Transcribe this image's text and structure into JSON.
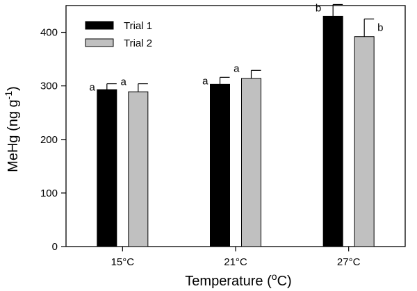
{
  "chart_data": {
    "type": "bar",
    "title": "",
    "xlabel": "Temperature",
    "xlabel_unit_prefix": "(",
    "xlabel_unit_sup": "o",
    "xlabel_unit_suffix": "C)",
    "ylabel": "MeHg (ng g",
    "ylabel_sup": "-1",
    "ylabel_suffix": ")",
    "ylim": [
      0,
      450
    ],
    "yticks": [
      0,
      100,
      200,
      300,
      400
    ],
    "categories": [
      "15°C",
      "21°C",
      "27°C"
    ],
    "legend_position": "top-left",
    "grid": false,
    "series": [
      {
        "name": "Trial 1",
        "color": "#000000",
        "values": [
          293,
          303,
          430
        ],
        "errors": [
          11,
          13,
          22
        ],
        "labels": [
          "a",
          "a",
          "b"
        ]
      },
      {
        "name": "Trial 2",
        "color": "#c0c0c0",
        "values": [
          289,
          314,
          392
        ],
        "errors": [
          15,
          15,
          33
        ],
        "labels": [
          "a",
          "a",
          "b"
        ]
      }
    ]
  }
}
